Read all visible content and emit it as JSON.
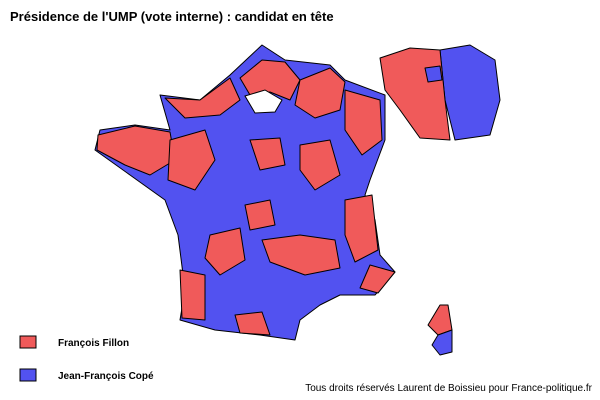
{
  "title": "Présidence de l'UMP (vote interne) : candidat en tête",
  "legend": [
    {
      "label": "François Fillon",
      "color": "#f05a5a"
    },
    {
      "label": "Jean-François Copé",
      "color": "#5252f0"
    }
  ],
  "credit": "Tous droits réservés Laurent de Boissieu pour France-politique.fr"
}
